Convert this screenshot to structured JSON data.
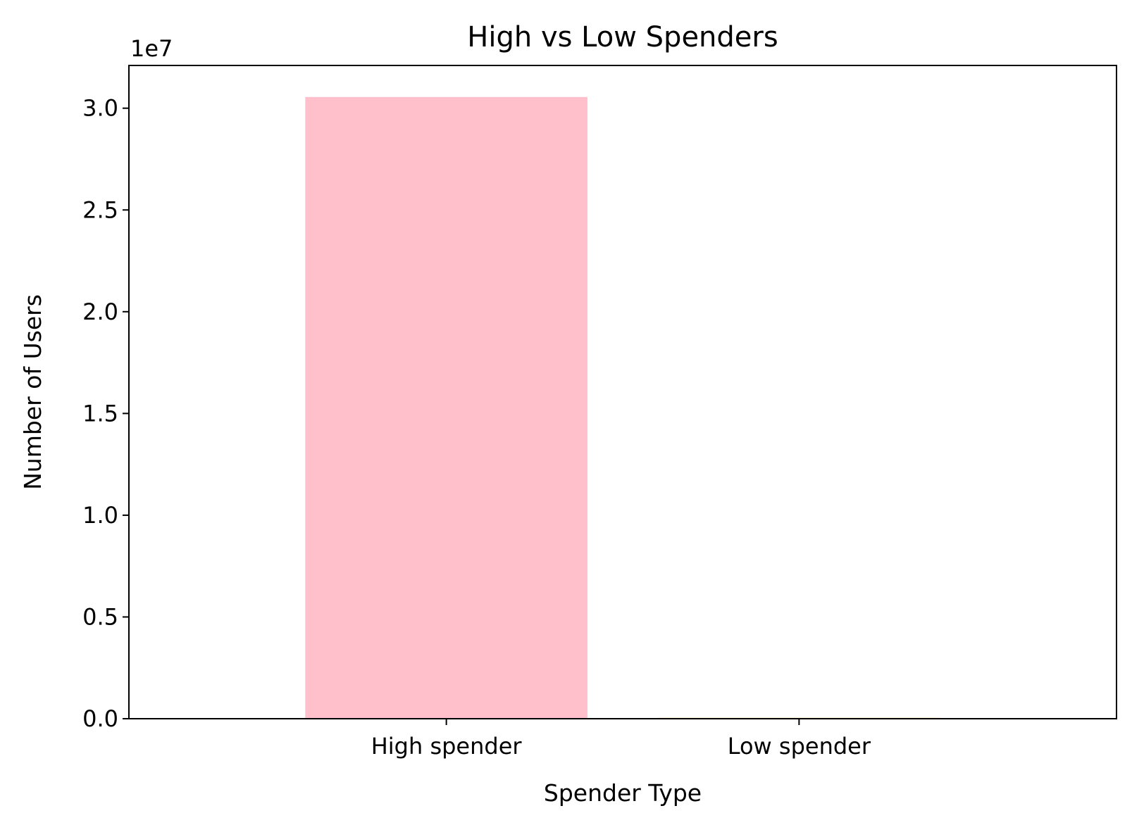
{
  "chart_data": {
    "type": "bar",
    "title": "High vs Low Spenders",
    "xlabel": "Spender Type",
    "ylabel": "Number of Users",
    "categories": [
      "High spender",
      "Low spender"
    ],
    "values": [
      30550000,
      40000
    ],
    "colors": [
      "#ffc0cb",
      "#ffa500"
    ],
    "ylim": [
      0,
      32100000
    ],
    "y_offset_label": "1e7",
    "y_ticks": [
      0,
      5000000,
      10000000,
      15000000,
      20000000,
      25000000,
      30000000
    ],
    "y_tick_labels": [
      "0.0",
      "0.5",
      "1.0",
      "1.5",
      "2.0",
      "2.5",
      "3.0"
    ],
    "grid": false,
    "legend": "none"
  }
}
